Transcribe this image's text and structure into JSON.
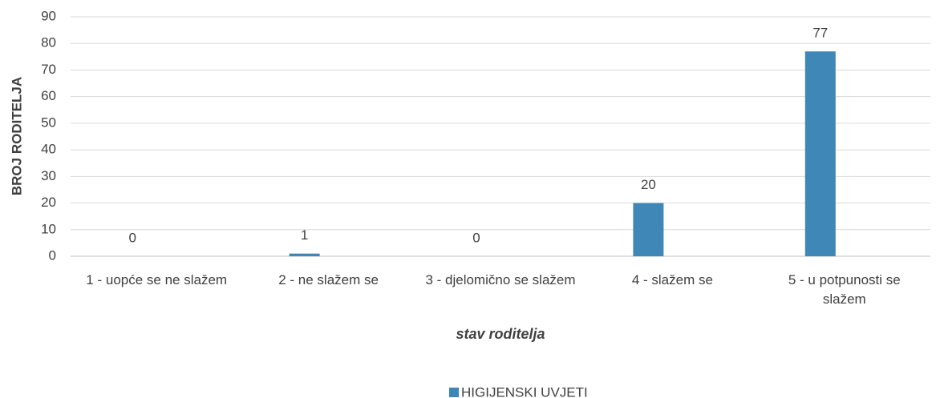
{
  "chart_data": {
    "type": "bar",
    "categories": [
      "1 - uopće se ne slažem",
      "2 - ne slažem se",
      "3 - djelomično se slažem",
      "4 - slažem se",
      "5 - u potpunosti se slažem"
    ],
    "series": [
      {
        "name": "HIGIJENSKI UVJETI",
        "color": "#3e87b6",
        "values": [
          0,
          1,
          0,
          20,
          77
        ]
      }
    ],
    "xlabel": "stav roditelja",
    "ylabel": "BROJ RODITELJA",
    "ylim": [
      0,
      90
    ],
    "yticks": [
      0,
      10,
      20,
      30,
      40,
      50,
      60,
      70,
      80,
      90
    ],
    "grid": true,
    "legend": "bottom"
  }
}
